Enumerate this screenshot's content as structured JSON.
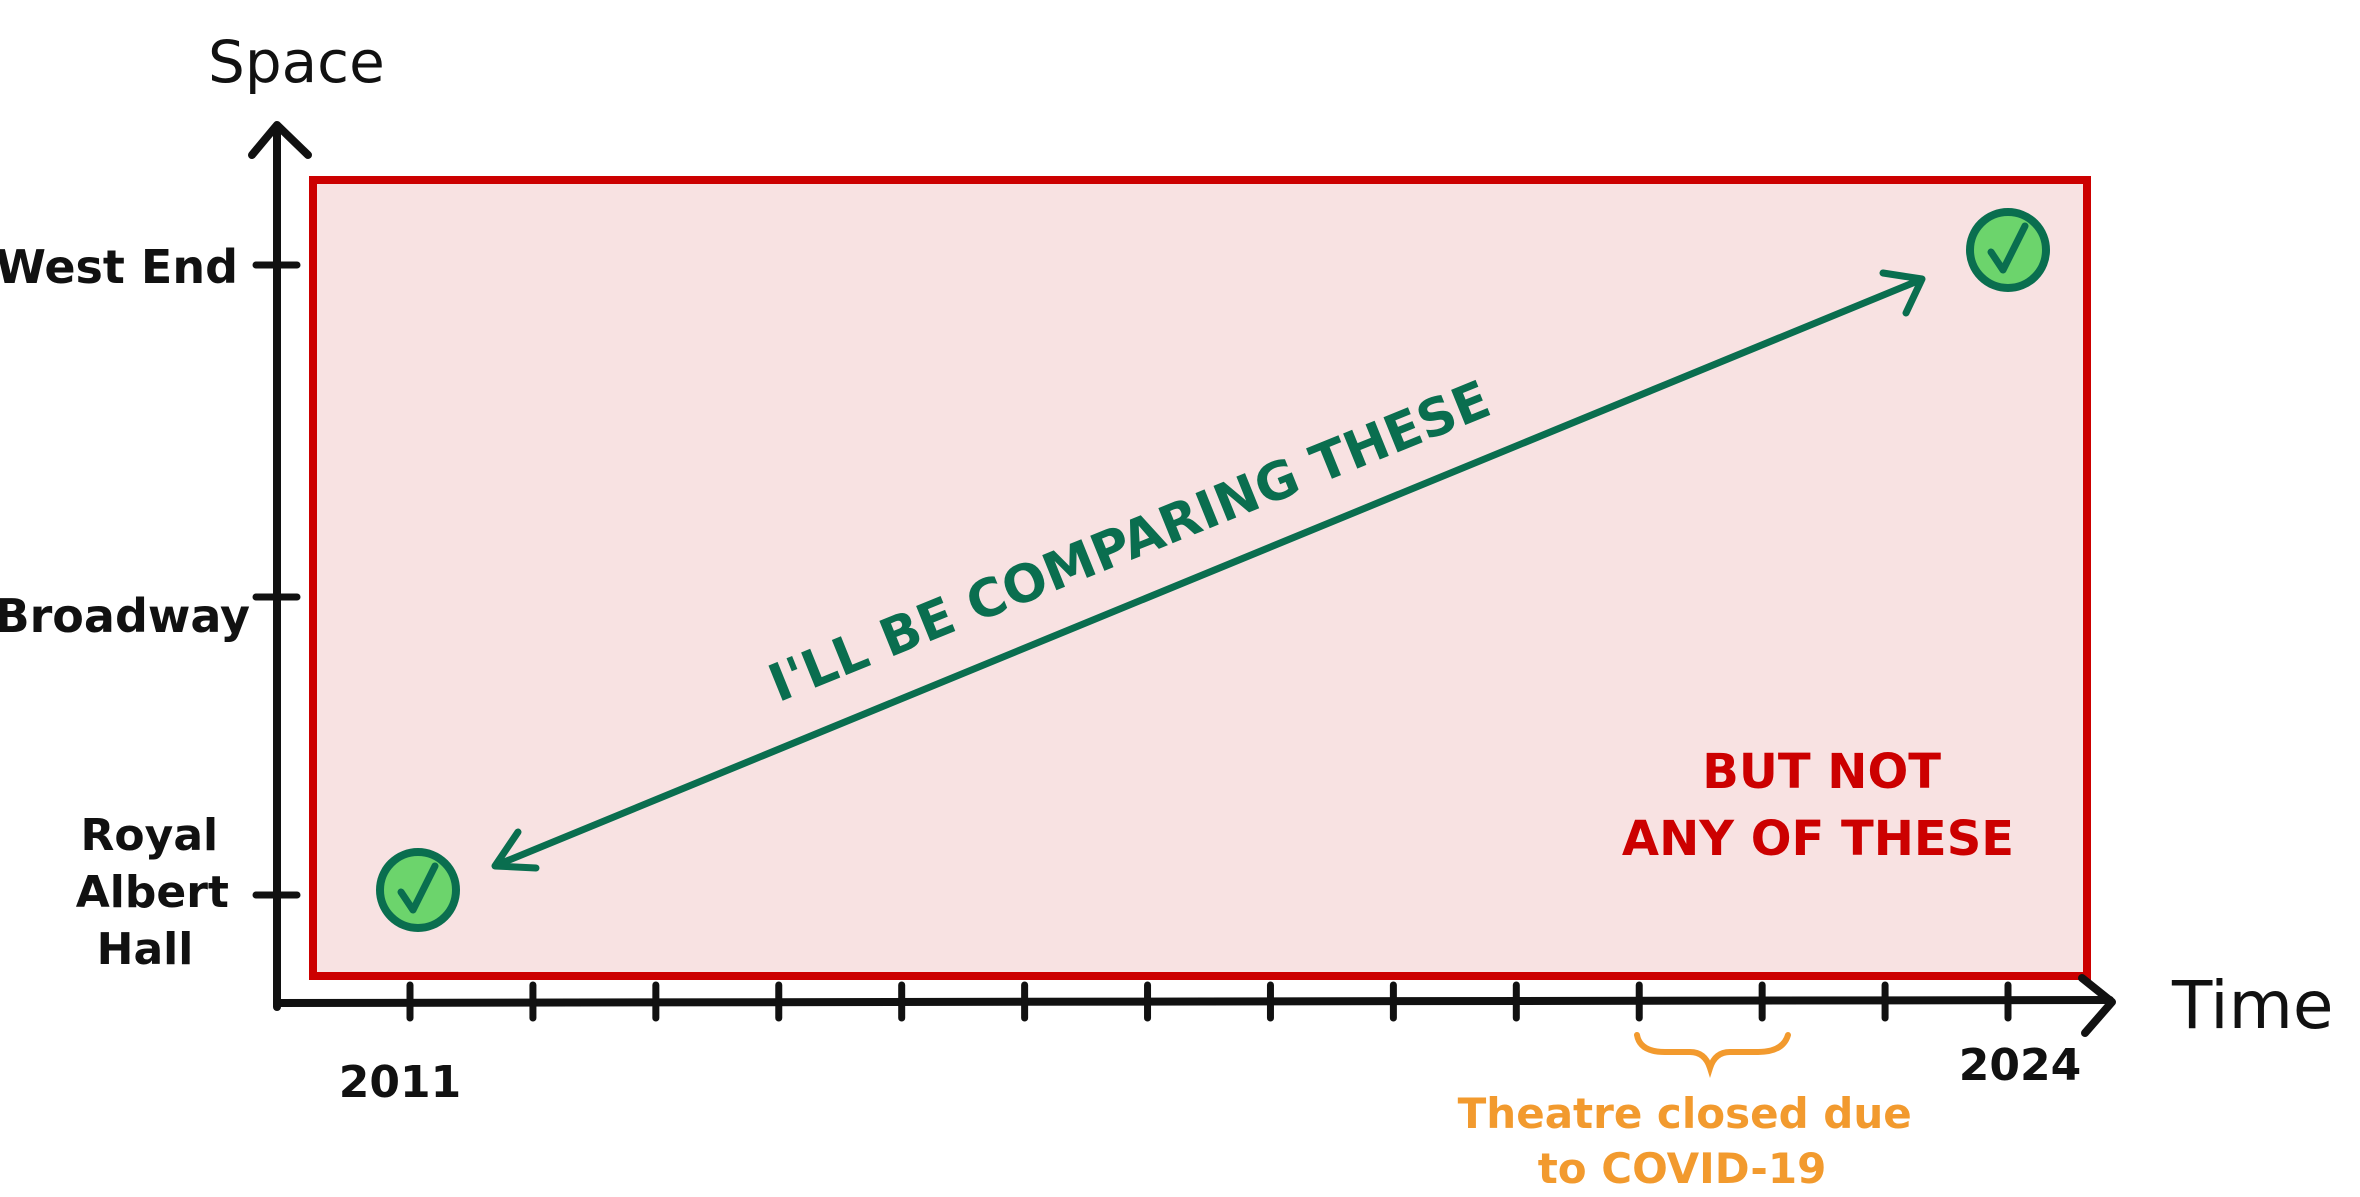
{
  "axes": {
    "y_title": "Space",
    "x_title": "Time",
    "y_ticks": [
      "West End",
      "Broadway",
      "Royal Albert Hall"
    ],
    "x_tick_count": 14,
    "x_start_label": "2011",
    "x_end_label": "2024"
  },
  "annotations": {
    "comparing": "I'LL BE COMPARING THESE",
    "not_compared_line1": "BUT NOT",
    "not_compared_line2": "ANY OF THESE",
    "covid_line1": "Theatre closed due",
    "covid_line2": "to COVID-19"
  },
  "points": [
    {
      "time": "2011",
      "space": "Royal Albert Hall",
      "icon": "check-circle-icon"
    },
    {
      "time": "2024",
      "space": "West End",
      "icon": "check-circle-icon"
    }
  ],
  "colors": {
    "axis": "#111111",
    "region_fill": "#f8e2e2",
    "region_border": "#cc0000",
    "arrow": "#0a6e4f",
    "check_fill": "#6cd46c",
    "check_stroke": "#0a6e4f",
    "covid": "#f29a2e"
  }
}
